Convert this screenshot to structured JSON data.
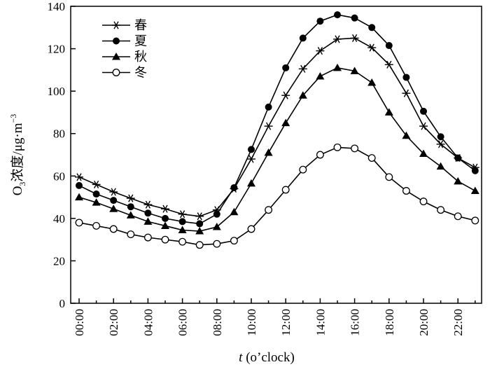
{
  "chart_data": {
    "type": "line",
    "x": [
      "00:00",
      "01:00",
      "02:00",
      "03:00",
      "04:00",
      "05:00",
      "06:00",
      "07:00",
      "08:00",
      "09:00",
      "10:00",
      "11:00",
      "12:00",
      "13:00",
      "14:00",
      "15:00",
      "16:00",
      "17:00",
      "18:00",
      "19:00",
      "20:00",
      "21:00",
      "22:00",
      "23:00"
    ],
    "xticks": [
      "00:00",
      "02:00",
      "04:00",
      "06:00",
      "08:00",
      "10:00",
      "12:00",
      "14:00",
      "16:00",
      "18:00",
      "20:00",
      "22:00"
    ],
    "xlabel_var": "t",
    "xlabel_unit": " (o’clock)",
    "ylabel": "O3浓度/μg·m−3",
    "ylabel_parts": {
      "o": "O",
      "sub": "3",
      "rest": "浓度/μg·m",
      "sup": "−3"
    },
    "ylim": [
      0,
      140
    ],
    "yticks": [
      0,
      20,
      40,
      60,
      80,
      100,
      120,
      140
    ],
    "legend_position": "top-left",
    "series": [
      {
        "name": "春",
        "marker": "asterisk",
        "values": [
          59.5,
          56,
          52.5,
          49.5,
          46.5,
          44.5,
          42,
          41,
          44,
          54,
          68,
          83.5,
          98,
          110.5,
          119,
          124.5,
          125,
          120.5,
          112.5,
          99,
          83.5,
          75,
          68.5,
          64
        ]
      },
      {
        "name": "夏",
        "marker": "filled-circle",
        "values": [
          55.5,
          51.5,
          48.5,
          45.5,
          42.5,
          40,
          38.5,
          37.5,
          42,
          54.5,
          72.5,
          92.5,
          111,
          125,
          133,
          136,
          134.5,
          130,
          121.5,
          106.5,
          90.5,
          78.5,
          68.5,
          62.5
        ]
      },
      {
        "name": "秋",
        "marker": "filled-triangle",
        "values": [
          50,
          47.5,
          44.5,
          41.5,
          38.5,
          36.5,
          34.5,
          34,
          36,
          43,
          56.5,
          71,
          85,
          98,
          107,
          111,
          109.5,
          104,
          90,
          79,
          70.5,
          64.5,
          57.5,
          53
        ]
      },
      {
        "name": "冬",
        "marker": "open-circle",
        "values": [
          38,
          36.5,
          35,
          32.5,
          31,
          30,
          29,
          27.5,
          28,
          29.5,
          35,
          44,
          53.5,
          63,
          70,
          73.5,
          73,
          68.5,
          59.5,
          53,
          48,
          44,
          41,
          39
        ]
      }
    ]
  }
}
